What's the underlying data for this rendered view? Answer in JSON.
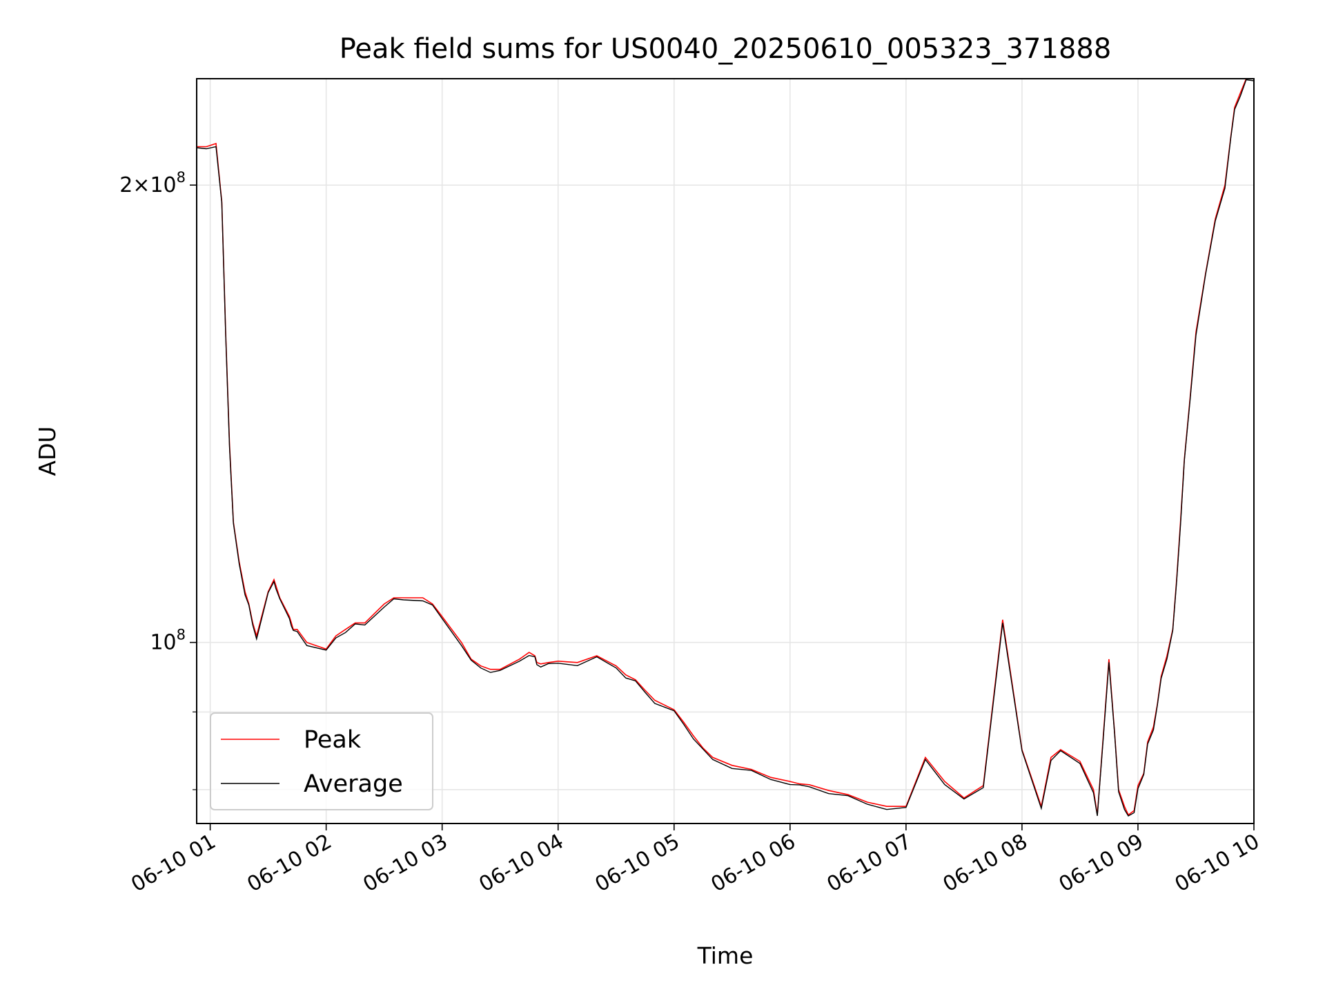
{
  "chart_data": {
    "type": "line",
    "title": "Peak field sums for US0040_20250610_005323_371888",
    "xlabel": "Time",
    "ylabel": "ADU",
    "yscale": "log",
    "xlim": [
      "2025-06-10 00:53",
      "2025-06-10 10:00"
    ],
    "ylim": [
      76000000,
      235000000
    ],
    "grid": true,
    "legend_position": "lower-left",
    "x_tick_labels": [
      "06-10 01",
      "06-10 02",
      "06-10 03",
      "06-10 04",
      "06-10 05",
      "06-10 06",
      "06-10 07",
      "06-10 08",
      "06-10 09",
      "06-10 10"
    ],
    "x_ticks": [
      "2025-06-10 01:00",
      "2025-06-10 02:00",
      "2025-06-10 03:00",
      "2025-06-10 04:00",
      "2025-06-10 05:00",
      "2025-06-10 06:00",
      "2025-06-10 07:00",
      "2025-06-10 08:00",
      "2025-06-10 09:00",
      "2025-06-10 10:00"
    ],
    "y_major_ticks": [
      {
        "value": 100000000,
        "base": "10",
        "exponent": "8",
        "coefficient": ""
      },
      {
        "value": 200000000,
        "base": "10",
        "exponent": "8",
        "coefficient": "2"
      }
    ],
    "y_minor_ticks": [
      80000000,
      90000000
    ],
    "series": [
      {
        "name": "Peak",
        "color": "#ff0000",
        "x": [
          "2025-06-10 00:53",
          "2025-06-10 00:58",
          "2025-06-10 01:03",
          "2025-06-10 01:06",
          "2025-06-10 01:08",
          "2025-06-10 01:10",
          "2025-06-10 01:12",
          "2025-06-10 01:15",
          "2025-06-10 01:18",
          "2025-06-10 01:20",
          "2025-06-10 01:22",
          "2025-06-10 01:24",
          "2025-06-10 01:30",
          "2025-06-10 01:33",
          "2025-06-10 01:34",
          "2025-06-10 01:36",
          "2025-06-10 01:41",
          "2025-06-10 01:42",
          "2025-06-10 01:43",
          "2025-06-10 01:45",
          "2025-06-10 01:50",
          "2025-06-10 02:00",
          "2025-06-10 02:05",
          "2025-06-10 02:10",
          "2025-06-10 02:15",
          "2025-06-10 02:20",
          "2025-06-10 02:30",
          "2025-06-10 02:35",
          "2025-06-10 02:40",
          "2025-06-10 02:50",
          "2025-06-10 02:55",
          "2025-06-10 03:00",
          "2025-06-10 03:10",
          "2025-06-10 03:15",
          "2025-06-10 03:20",
          "2025-06-10 03:25",
          "2025-06-10 03:30",
          "2025-06-10 03:40",
          "2025-06-10 03:45",
          "2025-06-10 03:48",
          "2025-06-10 03:49",
          "2025-06-10 03:51",
          "2025-06-10 03:55",
          "2025-06-10 04:00",
          "2025-06-10 04:10",
          "2025-06-10 04:20",
          "2025-06-10 04:30",
          "2025-06-10 04:35",
          "2025-06-10 04:40",
          "2025-06-10 04:45",
          "2025-06-10 04:50",
          "2025-06-10 05:00",
          "2025-06-10 05:05",
          "2025-06-10 05:10",
          "2025-06-10 05:15",
          "2025-06-10 05:20",
          "2025-06-10 05:30",
          "2025-06-10 05:40",
          "2025-06-10 05:50",
          "2025-06-10 06:00",
          "2025-06-10 06:05",
          "2025-06-10 06:10",
          "2025-06-10 06:20",
          "2025-06-10 06:30",
          "2025-06-10 06:40",
          "2025-06-10 06:50",
          "2025-06-10 07:00",
          "2025-06-10 07:10",
          "2025-06-10 07:20",
          "2025-06-10 07:30",
          "2025-06-10 07:40",
          "2025-06-10 07:50",
          "2025-06-10 08:00",
          "2025-06-10 08:10",
          "2025-06-10 08:15",
          "2025-06-10 08:20",
          "2025-06-10 08:30",
          "2025-06-10 08:37",
          "2025-06-10 08:39",
          "2025-06-10 08:42",
          "2025-06-10 08:45",
          "2025-06-10 08:48",
          "2025-06-10 08:50",
          "2025-06-10 08:53",
          "2025-06-10 08:55",
          "2025-06-10 08:58",
          "2025-06-10 09:00",
          "2025-06-10 09:03",
          "2025-06-10 09:05",
          "2025-06-10 09:08",
          "2025-06-10 09:10",
          "2025-06-10 09:12",
          "2025-06-10 09:15",
          "2025-06-10 09:18",
          "2025-06-10 09:20",
          "2025-06-10 09:22",
          "2025-06-10 09:24",
          "2025-06-10 09:27",
          "2025-06-10 09:30",
          "2025-06-10 09:35",
          "2025-06-10 09:40",
          "2025-06-10 09:45",
          "2025-06-10 09:48",
          "2025-06-10 09:50",
          "2025-06-10 09:53",
          "2025-06-10 09:56",
          "2025-06-10 10:00"
        ],
        "y": [
          212000000,
          212000000,
          213000000,
          195000000,
          160000000,
          135000000,
          120000000,
          113000000,
          108000000,
          106000000,
          103000000,
          101000000,
          108000000,
          110000000,
          109000000,
          107000000,
          104000000,
          103000000,
          102000000,
          102000000,
          100000000,
          99000000,
          101000000,
          102000000,
          103000000,
          103000000,
          106000000,
          107000000,
          107000000,
          107000000,
          106000000,
          104000000,
          100000000,
          97500000,
          96500000,
          96000000,
          96000000,
          97500000,
          98500000,
          98000000,
          97000000,
          96800000,
          97000000,
          97200000,
          97000000,
          98000000,
          96500000,
          95200000,
          94500000,
          93000000,
          91600000,
          90300000,
          88600000,
          86800000,
          85200000,
          84000000,
          83000000,
          82500000,
          81500000,
          81000000,
          80700000,
          80600000,
          79900000,
          79400000,
          78500000,
          78000000,
          78000000,
          84000000,
          81000000,
          79000000,
          80500000,
          103500000,
          85000000,
          78000000,
          84000000,
          85000000,
          83500000,
          80000000,
          77000000,
          86500000,
          97500000,
          87000000,
          80000000,
          78000000,
          77000000,
          77500000,
          80500000,
          82000000,
          86000000,
          88000000,
          91000000,
          95000000,
          98000000,
          102000000,
          110000000,
          120000000,
          132000000,
          145000000,
          160000000,
          175000000,
          190000000,
          200000000,
          215000000,
          225000000,
          230000000,
          235000000,
          235000000
        ],
        "y_note": ""
      },
      {
        "name": "Average",
        "color": "#000000",
        "x": [],
        "y": []
      }
    ]
  }
}
